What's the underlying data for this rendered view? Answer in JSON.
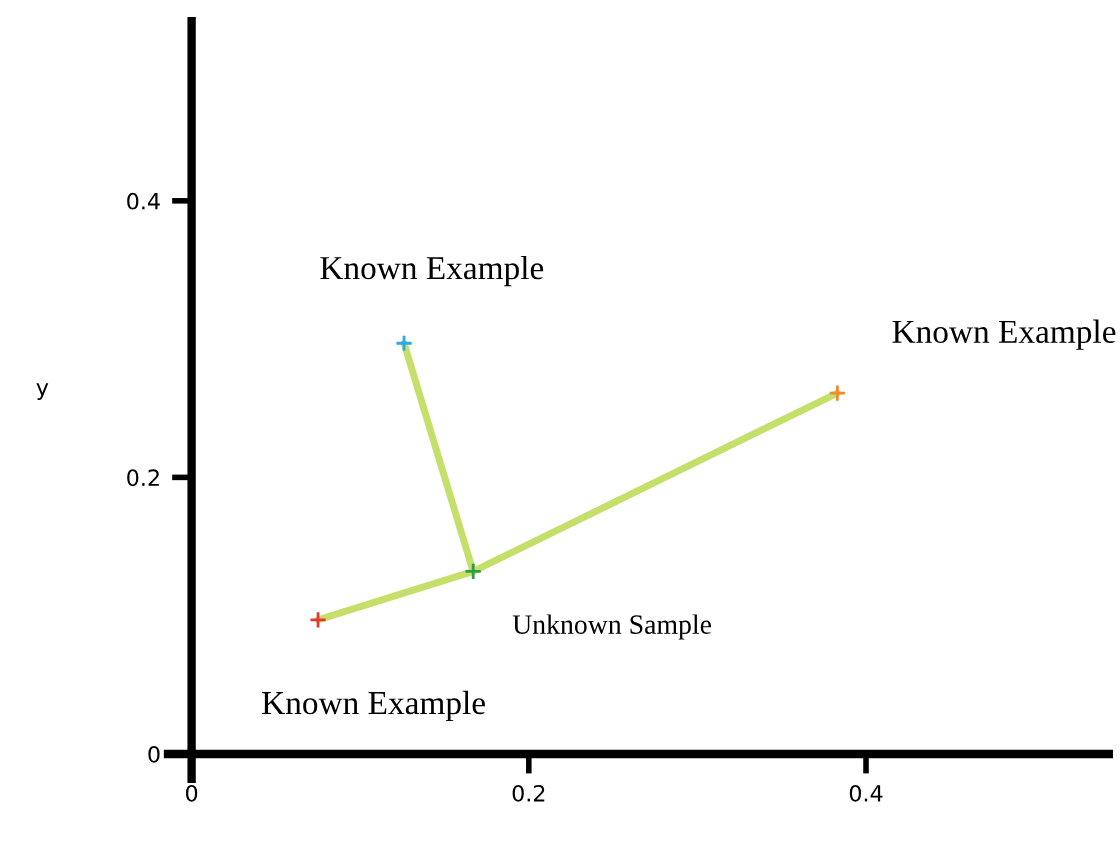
{
  "chart_data": {
    "type": "scatter",
    "ylabel": "y",
    "xlim": [
      -0.014,
      0.544
    ],
    "ylim": [
      -0.018,
      0.53
    ],
    "xticks": [
      0,
      0.2,
      0.4
    ],
    "yticks": [
      0,
      0.2,
      0.4
    ],
    "grid": false,
    "legend": false,
    "series": [
      {
        "type": "line",
        "marker": "none",
        "color": "#c5e06a",
        "x": [
          0.167,
          0.126
        ],
        "values": [
          0.132,
          0.297
        ]
      },
      {
        "type": "line",
        "marker": "none",
        "color": "#c5e06a",
        "x": [
          0.167,
          0.383
        ],
        "values": [
          0.132,
          0.261
        ]
      },
      {
        "type": "line",
        "marker": "none",
        "color": "#c5e06a",
        "x": [
          0.167,
          0.075
        ],
        "values": [
          0.132,
          0.097
        ]
      },
      {
        "marker": "cross",
        "color": "#e53935",
        "x": [
          0.075
        ],
        "values": [
          0.097
        ]
      },
      {
        "marker": "cross",
        "color": "#29a8f0",
        "x": [
          0.126
        ],
        "values": [
          0.297
        ]
      },
      {
        "marker": "cross",
        "color": "#f08a30",
        "x": [
          0.383
        ],
        "values": [
          0.261
        ]
      },
      {
        "marker": "cross",
        "color": "#2e9e4a",
        "x": [
          0.167
        ],
        "values": [
          0.132
        ]
      }
    ],
    "annotations": [
      {
        "text": "Known Example",
        "x": 0.126,
        "y": 0.297
      },
      {
        "text": "Known Example",
        "x": 0.383,
        "y": 0.261
      },
      {
        "text": "Known Example",
        "x": 0.075,
        "y": 0.097
      },
      {
        "text": "Unknown Sample",
        "x": 0.167,
        "y": 0.132
      }
    ]
  }
}
